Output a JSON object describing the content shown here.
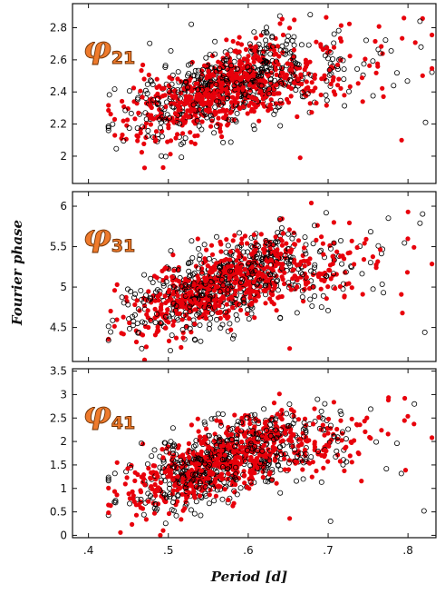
{
  "chart_data": {
    "type": "scatter",
    "shared": {
      "xlabel": "Period [d]",
      "ylabel": "Fourier phase",
      "xlim": [
        0.38,
        0.835
      ],
      "xticks": [
        0.4,
        0.5,
        0.6,
        0.7,
        0.8
      ],
      "xtick_labels": [
        ".4",
        ".5",
        ".6",
        ".7",
        ".8"
      ],
      "colors": {
        "open": "#000000",
        "filled": "#e8000b",
        "label_fill": "#ee7a2c",
        "label_stroke": "#6b2e00"
      }
    },
    "panels": [
      {
        "label_main": "φ",
        "label_sub": "21",
        "ylim": [
          1.83,
          2.95
        ],
        "yticks": [
          2.0,
          2.2,
          2.4,
          2.6,
          2.8
        ],
        "ytick_labels": [
          "2",
          "2.2",
          "2.4",
          "2.6",
          "2.8"
        ],
        "trend": {
          "x0": 0.45,
          "y0": 2.23,
          "slope": 1.6,
          "spread_filled": 0.12,
          "spread_open": 0.13
        },
        "series": [
          {
            "marker": "filled",
            "count": 700
          },
          {
            "marker": "open",
            "count": 520
          }
        ],
        "outliers": [
          {
            "marker": "open",
            "x": 0.822,
            "y": 2.21
          },
          {
            "marker": "filled",
            "x": 0.792,
            "y": 2.1
          },
          {
            "marker": "open",
            "x": 0.815,
            "y": 2.84
          },
          {
            "marker": "filled",
            "x": 0.795,
            "y": 2.86
          },
          {
            "marker": "filled",
            "x": 0.665,
            "y": 1.99
          },
          {
            "marker": "open",
            "x": 0.782,
            "y": 2.44
          }
        ]
      },
      {
        "label_main": "φ",
        "label_sub": "31",
        "ylim": [
          4.08,
          6.18
        ],
        "yticks": [
          4.5,
          5.0,
          5.5,
          6.0
        ],
        "ytick_labels": [
          "4.5",
          "5",
          "5.5",
          "6"
        ],
        "trend": {
          "x0": 0.45,
          "y0": 4.65,
          "slope": 3.2,
          "spread_filled": 0.22,
          "spread_open": 0.24
        },
        "series": [
          {
            "marker": "filled",
            "count": 700
          },
          {
            "marker": "open",
            "count": 520
          }
        ],
        "outliers": [
          {
            "marker": "filled",
            "x": 0.793,
            "y": 4.68
          },
          {
            "marker": "open",
            "x": 0.821,
            "y": 4.44
          },
          {
            "marker": "filled",
            "x": 0.8,
            "y": 5.93
          },
          {
            "marker": "open",
            "x": 0.815,
            "y": 5.79
          },
          {
            "marker": "filled",
            "x": 0.679,
            "y": 6.04
          },
          {
            "marker": "open",
            "x": 0.7,
            "y": 4.71
          }
        ]
      },
      {
        "label_main": "φ",
        "label_sub": "41",
        "ylim": [
          -0.05,
          3.55
        ],
        "yticks": [
          0.0,
          0.5,
          1.0,
          1.5,
          2.0,
          2.5,
          3.0,
          3.5
        ],
        "ytick_labels": [
          "0",
          "0.5",
          "1",
          "1.5",
          "2",
          "2.5",
          "3",
          "3.5"
        ],
        "trend": {
          "x0": 0.45,
          "y0": 0.95,
          "slope": 5.4,
          "spread_filled": 0.35,
          "spread_open": 0.4
        },
        "series": [
          {
            "marker": "filled",
            "count": 700
          },
          {
            "marker": "open",
            "count": 520
          }
        ],
        "outliers": [
          {
            "marker": "open",
            "x": 0.82,
            "y": 0.52
          },
          {
            "marker": "filled",
            "x": 0.797,
            "y": 1.39
          },
          {
            "marker": "filled",
            "x": 0.796,
            "y": 2.92
          },
          {
            "marker": "open",
            "x": 0.808,
            "y": 2.8
          },
          {
            "marker": "filled",
            "x": 0.44,
            "y": 0.06
          },
          {
            "marker": "filled",
            "x": 0.49,
            "y": 0.0
          },
          {
            "marker": "open",
            "x": 0.703,
            "y": 0.3
          }
        ]
      }
    ]
  }
}
